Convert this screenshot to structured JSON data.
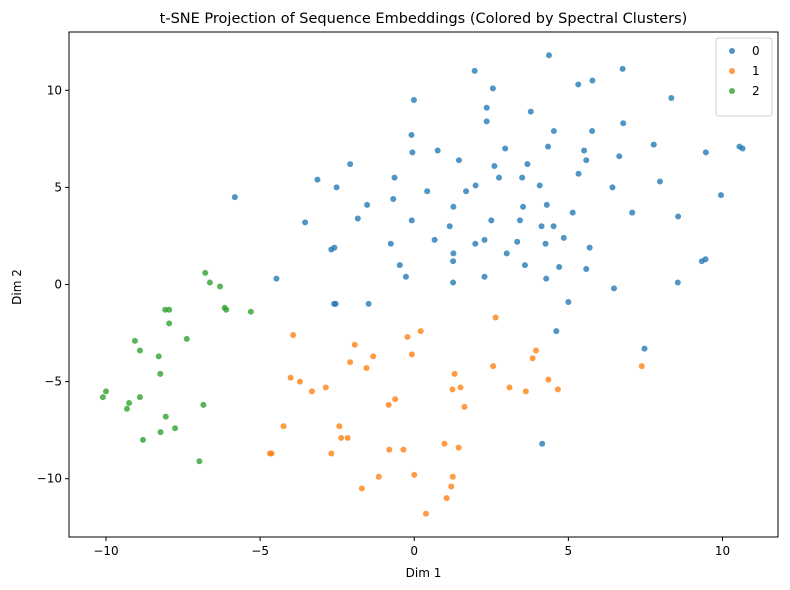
{
  "chart_data": {
    "type": "scatter",
    "title": "t-SNE Projection of Sequence Embeddings (Colored by Spectral Clusters)",
    "xlabel": "Dim 1",
    "ylabel": "Dim 2",
    "xlim": [
      -11.2,
      11.8
    ],
    "ylim": [
      -13.0,
      13.0
    ],
    "xticks": [
      -10,
      -5,
      0,
      5,
      10
    ],
    "yticks": [
      -10,
      -5,
      0,
      5,
      10
    ],
    "xtick_labels": [
      "−10",
      "−5",
      "0",
      "5",
      "10"
    ],
    "ytick_labels": [
      "−10",
      "−5",
      "0",
      "5",
      "10"
    ],
    "grid": false,
    "legend_position": "top-right",
    "series": [
      {
        "name": "0",
        "color": "#1f77b4",
        "points": [
          [
            1.96,
            11.0
          ],
          [
            2.55,
            10.1
          ],
          [
            4.37,
            11.8
          ],
          [
            5.32,
            10.3
          ],
          [
            5.78,
            10.5
          ],
          [
            6.76,
            11.1
          ],
          [
            -0.01,
            9.5
          ],
          [
            2.35,
            9.1
          ],
          [
            2.35,
            8.4
          ],
          [
            3.78,
            8.9
          ],
          [
            4.53,
            7.9
          ],
          [
            5.77,
            7.9
          ],
          [
            6.78,
            8.3
          ],
          [
            8.34,
            9.6
          ],
          [
            -0.09,
            7.7
          ],
          [
            0.76,
            6.9
          ],
          [
            2.95,
            7.0
          ],
          [
            4.34,
            7.1
          ],
          [
            5.51,
            6.9
          ],
          [
            7.77,
            7.2
          ],
          [
            10.55,
            7.1
          ],
          [
            10.65,
            7.0
          ],
          [
            -0.06,
            6.8
          ],
          [
            1.45,
            6.4
          ],
          [
            2.6,
            6.1
          ],
          [
            3.67,
            6.2
          ],
          [
            5.58,
            6.4
          ],
          [
            6.65,
            6.6
          ],
          [
            9.46,
            6.8
          ],
          [
            -2.08,
            6.2
          ],
          [
            -3.14,
            5.4
          ],
          [
            -0.64,
            5.5
          ],
          [
            2.75,
            5.5
          ],
          [
            3.5,
            5.5
          ],
          [
            5.33,
            5.7
          ],
          [
            4.07,
            5.1
          ],
          [
            1.99,
            5.1
          ],
          [
            1.68,
            4.8
          ],
          [
            0.42,
            4.8
          ],
          [
            6.43,
            5.0
          ],
          [
            7.97,
            5.3
          ],
          [
            -2.52,
            5.0
          ],
          [
            -5.82,
            4.5
          ],
          [
            -1.53,
            4.1
          ],
          [
            -0.68,
            4.4
          ],
          [
            1.27,
            4.0
          ],
          [
            3.53,
            4.0
          ],
          [
            4.3,
            4.1
          ],
          [
            9.95,
            4.6
          ],
          [
            -1.83,
            3.4
          ],
          [
            -3.54,
            3.2
          ],
          [
            -0.08,
            3.3
          ],
          [
            2.5,
            3.3
          ],
          [
            3.43,
            3.3
          ],
          [
            5.14,
            3.7
          ],
          [
            7.07,
            3.7
          ],
          [
            8.56,
            3.5
          ],
          [
            1.15,
            3.0
          ],
          [
            4.13,
            3.0
          ],
          [
            4.52,
            3.0
          ],
          [
            0.66,
            2.3
          ],
          [
            1.98,
            2.1
          ],
          [
            2.28,
            2.3
          ],
          [
            3.34,
            2.2
          ],
          [
            4.85,
            2.4
          ],
          [
            4.26,
            2.1
          ],
          [
            5.69,
            1.9
          ],
          [
            -2.59,
            1.9
          ],
          [
            -2.69,
            1.8
          ],
          [
            -0.76,
            2.1
          ],
          [
            1.27,
            1.6
          ],
          [
            3.0,
            1.6
          ],
          [
            3.59,
            1.0
          ],
          [
            1.26,
            1.2
          ],
          [
            -0.47,
            1.0
          ],
          [
            9.33,
            1.2
          ],
          [
            9.45,
            1.3
          ],
          [
            4.7,
            0.9
          ],
          [
            5.58,
            0.8
          ],
          [
            -4.47,
            0.3
          ],
          [
            -0.27,
            0.4
          ],
          [
            2.28,
            0.4
          ],
          [
            4.28,
            0.3
          ],
          [
            1.26,
            0.1
          ],
          [
            8.55,
            0.1
          ],
          [
            6.48,
            -0.2
          ],
          [
            -2.6,
            -1.0
          ],
          [
            -2.55,
            -1.0
          ],
          [
            -1.48,
            -1.0
          ],
          [
            5.0,
            -0.9
          ],
          [
            4.61,
            -2.4
          ],
          [
            7.47,
            -3.3
          ],
          [
            4.15,
            -8.2
          ]
        ]
      },
      {
        "name": "1",
        "color": "#ff7f0e",
        "points": [
          [
            -3.93,
            -2.6
          ],
          [
            0.21,
            -2.4
          ],
          [
            -0.22,
            -2.7
          ],
          [
            2.64,
            -1.7
          ],
          [
            -1.93,
            -3.1
          ],
          [
            -0.08,
            -3.6
          ],
          [
            -2.08,
            -4.0
          ],
          [
            -1.33,
            -3.7
          ],
          [
            -1.55,
            -4.3
          ],
          [
            3.95,
            -3.4
          ],
          [
            3.84,
            -3.8
          ],
          [
            7.38,
            -4.2
          ],
          [
            1.31,
            -4.6
          ],
          [
            2.56,
            -4.2
          ],
          [
            -4.01,
            -4.8
          ],
          [
            -3.71,
            -5.0
          ],
          [
            -3.32,
            -5.5
          ],
          [
            -2.87,
            -5.3
          ],
          [
            1.5,
            -5.3
          ],
          [
            1.24,
            -5.4
          ],
          [
            3.09,
            -5.3
          ],
          [
            3.62,
            -5.5
          ],
          [
            4.35,
            -4.9
          ],
          [
            4.66,
            -5.4
          ],
          [
            -0.62,
            -5.9
          ],
          [
            -0.83,
            -6.2
          ],
          [
            1.63,
            -6.3
          ],
          [
            -4.24,
            -7.3
          ],
          [
            -2.43,
            -7.3
          ],
          [
            -2.37,
            -7.9
          ],
          [
            -2.16,
            -7.9
          ],
          [
            -4.68,
            -8.7
          ],
          [
            -4.63,
            -8.7
          ],
          [
            -2.69,
            -8.7
          ],
          [
            -0.81,
            -8.5
          ],
          [
            -0.35,
            -8.5
          ],
          [
            0.98,
            -8.2
          ],
          [
            1.44,
            -8.4
          ],
          [
            -1.15,
            -9.9
          ],
          [
            0.0,
            -9.8
          ],
          [
            1.25,
            -9.9
          ],
          [
            -1.7,
            -10.5
          ],
          [
            1.2,
            -10.4
          ],
          [
            1.05,
            -11.0
          ],
          [
            0.38,
            -11.8
          ]
        ]
      },
      {
        "name": "2",
        "color": "#2ca02c",
        "points": [
          [
            -6.78,
            0.6
          ],
          [
            -6.63,
            0.1
          ],
          [
            -6.3,
            -0.1
          ],
          [
            -6.15,
            -1.2
          ],
          [
            -6.1,
            -1.3
          ],
          [
            -5.3,
            -1.4
          ],
          [
            -8.08,
            -1.3
          ],
          [
            -7.95,
            -1.3
          ],
          [
            -7.95,
            -2.0
          ],
          [
            -7.38,
            -2.8
          ],
          [
            -9.06,
            -2.9
          ],
          [
            -8.9,
            -3.4
          ],
          [
            -8.29,
            -3.7
          ],
          [
            -8.24,
            -4.6
          ],
          [
            -10.0,
            -5.5
          ],
          [
            -10.1,
            -5.8
          ],
          [
            -8.9,
            -5.8
          ],
          [
            -9.25,
            -6.1
          ],
          [
            -9.32,
            -6.4
          ],
          [
            -6.84,
            -6.2
          ],
          [
            -8.06,
            -6.8
          ],
          [
            -7.76,
            -7.4
          ],
          [
            -8.23,
            -7.6
          ],
          [
            -8.8,
            -8.0
          ],
          [
            -6.97,
            -9.1
          ]
        ]
      }
    ]
  }
}
